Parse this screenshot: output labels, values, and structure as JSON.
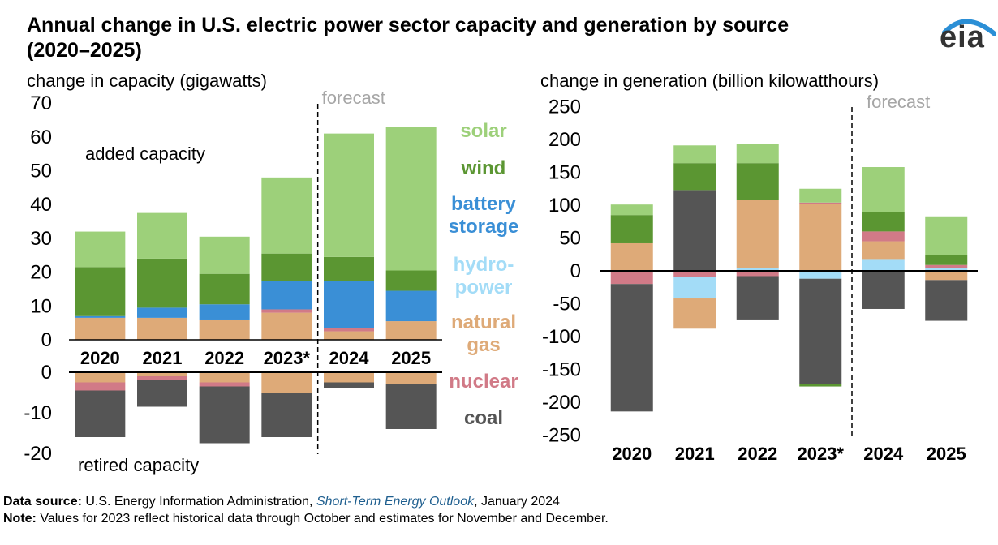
{
  "title": "Annual change in U.S. electric power sector capacity and generation by source (2020–2025)",
  "logo_text": "eia",
  "colors": {
    "solar": "#9dd07a",
    "wind": "#5b9632",
    "battery_storage": "#3a8fd6",
    "hydropower": "#a3dcf7",
    "natural_gas": "#deaa78",
    "nuclear": "#d17a87",
    "coal": "#555555",
    "forecast": "#a6a6a6"
  },
  "legend": [
    {
      "key": "solar",
      "lines": [
        "solar"
      ]
    },
    {
      "key": "wind",
      "lines": [
        "wind"
      ]
    },
    {
      "key": "battery_storage",
      "lines": [
        "battery",
        "storage"
      ]
    },
    {
      "key": "hydropower",
      "lines": [
        "hydro-",
        "power"
      ]
    },
    {
      "key": "natural_gas",
      "lines": [
        "natural",
        "gas"
      ]
    },
    {
      "key": "nuclear",
      "lines": [
        "nuclear"
      ]
    },
    {
      "key": "coal",
      "lines": [
        "coal"
      ]
    }
  ],
  "chart_data": [
    {
      "type": "bar",
      "subtitle": "change in capacity (gigawatts)",
      "categories": [
        "2020",
        "2021",
        "2022",
        "2023*",
        "2024",
        "2025"
      ],
      "forecast_label": "forecast",
      "forecast_start_index": 4,
      "added": {
        "label": "added capacity",
        "ylim": [
          0,
          70
        ],
        "yticks": [
          "0",
          "10",
          "20",
          "30",
          "40",
          "50",
          "60",
          "70"
        ],
        "series": [
          {
            "key": "natural_gas",
            "values": [
              6.5,
              6.5,
              6,
              8,
              2.5,
              5.5
            ]
          },
          {
            "key": "nuclear",
            "values": [
              0,
              0,
              0,
              1,
              1,
              0
            ]
          },
          {
            "key": "battery_storage",
            "values": [
              0.5,
              3,
              4.5,
              8.5,
              14,
              9
            ]
          },
          {
            "key": "wind",
            "values": [
              14.5,
              14.5,
              9,
              8,
              7,
              6
            ]
          },
          {
            "key": "solar",
            "values": [
              10.5,
              13.5,
              11,
              22.5,
              36.5,
              42.5
            ]
          }
        ]
      },
      "retired": {
        "label": "retired capacity",
        "ylim": [
          -20,
          0
        ],
        "yticks": [
          "0",
          "-10",
          "-20"
        ],
        "series": [
          {
            "key": "natural_gas",
            "values": [
              -2.5,
              -1,
              -2.5,
              -5,
              -2.5,
              -3
            ]
          },
          {
            "key": "nuclear",
            "values": [
              -2,
              -1,
              -1,
              0,
              0,
              0
            ]
          },
          {
            "key": "coal",
            "values": [
              -11.5,
              -6.5,
              -14,
              -11,
              -1.5,
              -11
            ]
          }
        ]
      }
    },
    {
      "type": "bar",
      "subtitle": "change in generation (billion kilowatthours)",
      "categories": [
        "2020",
        "2021",
        "2022",
        "2023*",
        "2024",
        "2025"
      ],
      "forecast_label": "forecast",
      "forecast_start_index": 4,
      "ylim": [
        -250,
        250
      ],
      "yticks": [
        "250",
        "200",
        "150",
        "100",
        "50",
        "0",
        "-50",
        "-100",
        "-150",
        "-200",
        "-250"
      ],
      "positive_series": [
        {
          "key": "coal",
          "values": [
            0,
            123,
            0,
            0,
            0,
            0
          ]
        },
        {
          "key": "hydropower",
          "values": [
            0,
            0,
            4,
            0,
            18,
            4
          ]
        },
        {
          "key": "natural_gas",
          "values": [
            42,
            0,
            104,
            102,
            27,
            0
          ]
        },
        {
          "key": "nuclear",
          "values": [
            0,
            0,
            0,
            2,
            15,
            5
          ]
        },
        {
          "key": "wind",
          "values": [
            43,
            41,
            56,
            0,
            29,
            15
          ]
        },
        {
          "key": "solar",
          "values": [
            16,
            27,
            29,
            21,
            69,
            59
          ]
        }
      ],
      "negative_series": [
        {
          "key": "nuclear",
          "values": [
            -20,
            -9,
            -8,
            0,
            0,
            0
          ]
        },
        {
          "key": "hydropower",
          "values": [
            0,
            -33,
            0,
            -12,
            0,
            0
          ]
        },
        {
          "key": "natural_gas",
          "values": [
            0,
            -46,
            0,
            0,
            0,
            -14
          ]
        },
        {
          "key": "coal",
          "values": [
            -194,
            0,
            -66,
            -160,
            -58,
            -62
          ]
        },
        {
          "key": "wind",
          "values": [
            0,
            0,
            0,
            -4,
            0,
            0
          ]
        }
      ]
    }
  ],
  "footer": {
    "source_label": "Data source:",
    "source_text": " U.S. Energy Information Administration, ",
    "source_title": "Short-Term Energy Outlook",
    "source_date": ", January 2024",
    "note_label": "Note:",
    "note_text": " Values for 2023 reflect historical data through October and estimates for November and December."
  }
}
